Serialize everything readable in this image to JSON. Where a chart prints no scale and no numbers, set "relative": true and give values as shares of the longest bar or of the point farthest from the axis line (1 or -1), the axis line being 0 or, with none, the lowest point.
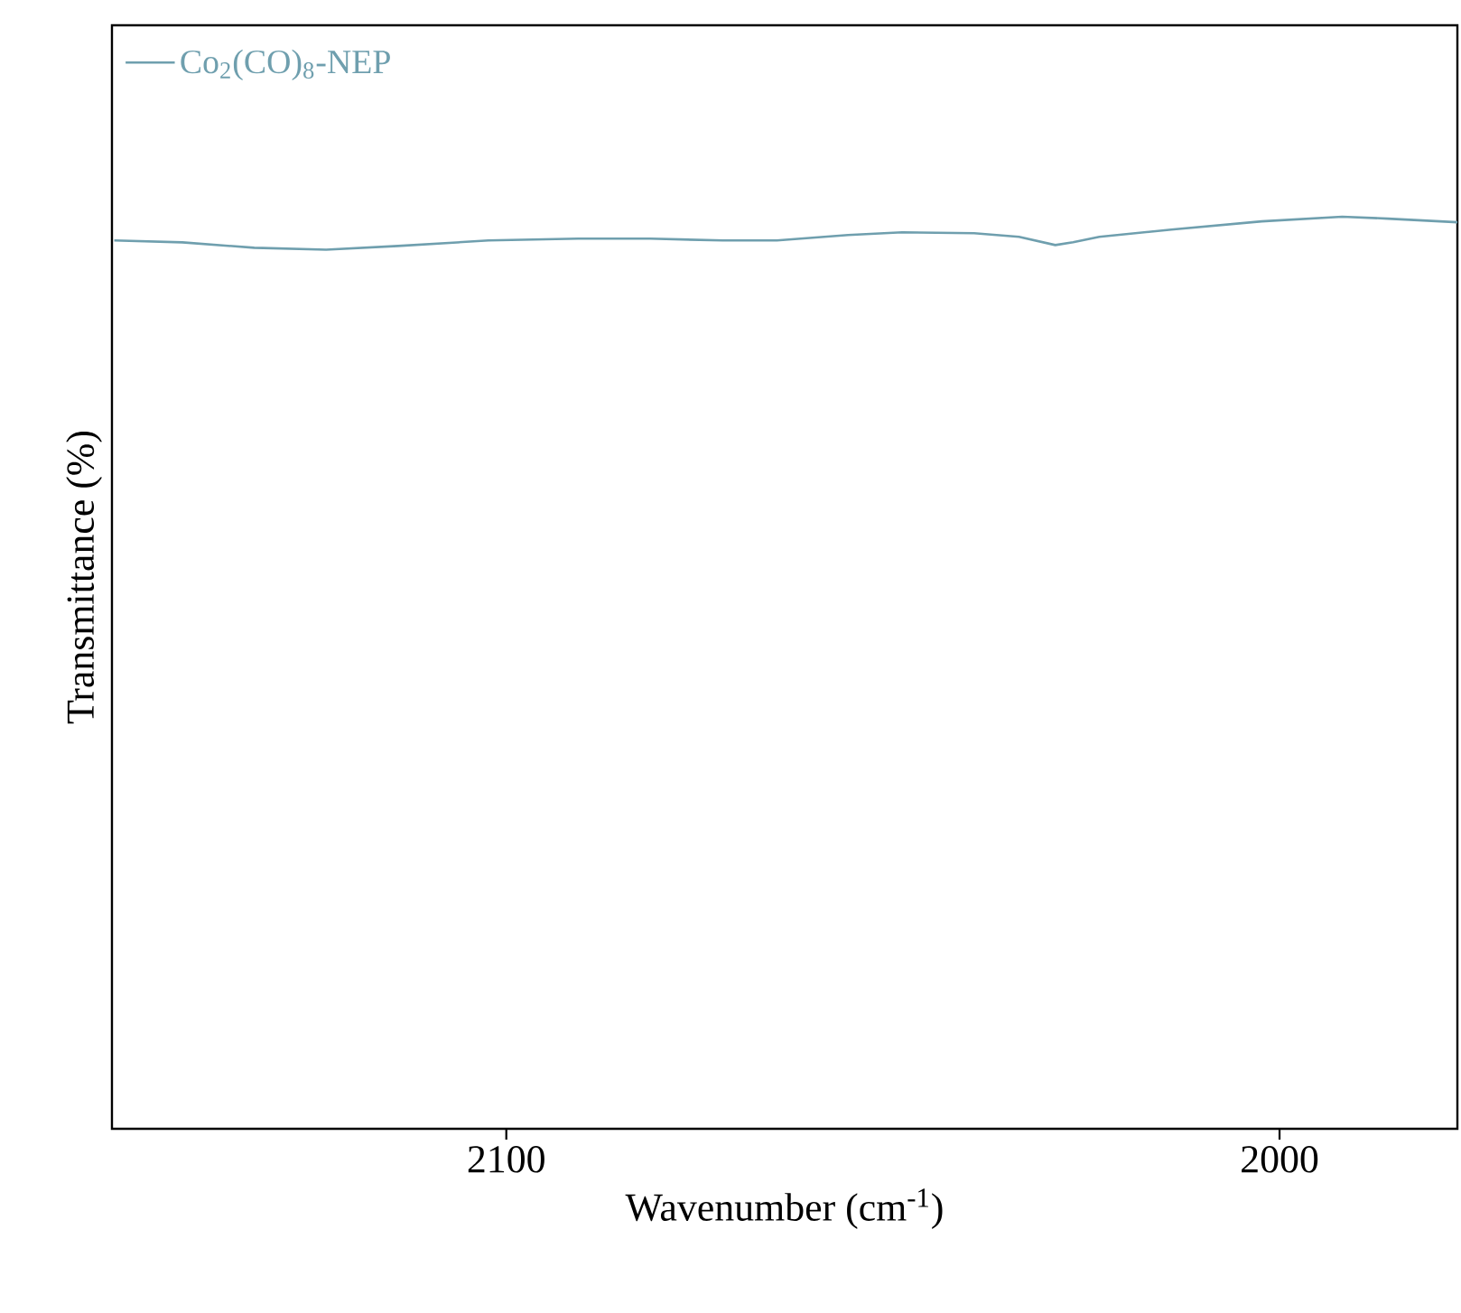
{
  "chart_data": {
    "type": "line",
    "relative": true,
    "xlabel": "Wavenumber (cm$^{-1}$)",
    "ylabel": "Transmittance (%)",
    "xlim": [
      2151,
      1977
    ],
    "xticks": [
      2100,
      2000
    ],
    "legend": "top left",
    "grid": false,
    "series": [
      {
        "name": "Co$_{2}$(CO)$_{8}$-NEP",
        "color": "#6f9fae",
        "x": [
          2150.7,
          2141.9,
          2132.6,
          2123.3,
          2114,
          2102.3,
          2090.7,
          2081.4,
          2072,
          2065,
          2055.8,
          2048.8,
          2039.5,
          2033.7,
          2029,
          2026.7,
          2023.3,
          2014,
          2002.3,
          1991.9,
          1986,
          1977
        ],
        "values": [
          0.974,
          0.972,
          0.966,
          0.964,
          0.968,
          0.974,
          0.976,
          0.976,
          0.974,
          0.974,
          0.98,
          0.983,
          0.982,
          0.978,
          0.969,
          0.972,
          0.978,
          0.986,
          0.995,
          1,
          0.998,
          0.994
        ]
      }
    ]
  }
}
